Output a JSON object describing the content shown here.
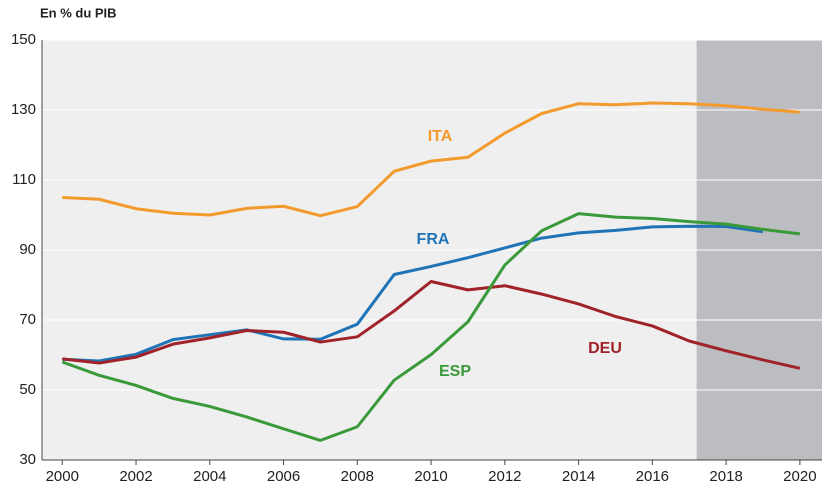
{
  "chart_data": {
    "type": "line",
    "ylabel": "En % du PIB",
    "x": [
      2000,
      2001,
      2002,
      2003,
      2004,
      2005,
      2006,
      2007,
      2008,
      2009,
      2010,
      2011,
      2012,
      2013,
      2014,
      2015,
      2016,
      2017,
      2018,
      2019,
      2020
    ],
    "series": [
      {
        "name": "ITA",
        "color": "#f39a2d",
        "values": [
          105,
          104.5,
          101.8,
          100.5,
          100,
          101.9,
          102.5,
          99.8,
          102.4,
          112.5,
          115.4,
          116.5,
          123.4,
          129,
          131.8,
          131.5,
          132,
          131.8,
          131.2,
          130.2,
          129.4
        ]
      },
      {
        "name": "FRA",
        "color": "#1f74b8",
        "values": [
          58.8,
          58.3,
          60.2,
          64.4,
          65.8,
          67.2,
          64.6,
          64.5,
          68.8,
          83,
          85.3,
          87.8,
          90.6,
          93.4,
          94.9,
          95.6,
          96.6,
          96.8,
          96.7,
          95.2,
          null
        ]
      },
      {
        "name": "DEU",
        "color": "#a0232a",
        "values": [
          58.9,
          57.7,
          59.4,
          63.1,
          64.9,
          67,
          66.5,
          63.7,
          65.2,
          72.6,
          81,
          78.6,
          79.8,
          77.4,
          74.6,
          71,
          68.3,
          64,
          61.2,
          58.6,
          56.2
        ]
      },
      {
        "name": "ESP",
        "color": "#3a9a3a",
        "values": [
          58,
          54.2,
          51.3,
          47.6,
          45.3,
          42.3,
          38.9,
          35.6,
          39.5,
          52.8,
          60.1,
          69.5,
          85.7,
          95.5,
          100.4,
          99.4,
          99,
          98.1,
          97.4,
          95.9,
          94.6
        ]
      }
    ],
    "xlim": [
      1999.45,
      2020.6
    ],
    "xticks": [
      2000,
      2002,
      2004,
      2006,
      2008,
      2010,
      2012,
      2014,
      2016,
      2018,
      2020
    ],
    "ylim": [
      30,
      150
    ],
    "yticks": [
      30,
      50,
      70,
      90,
      110,
      130,
      150
    ],
    "grid": true,
    "forecast_start": 2017.2
  }
}
